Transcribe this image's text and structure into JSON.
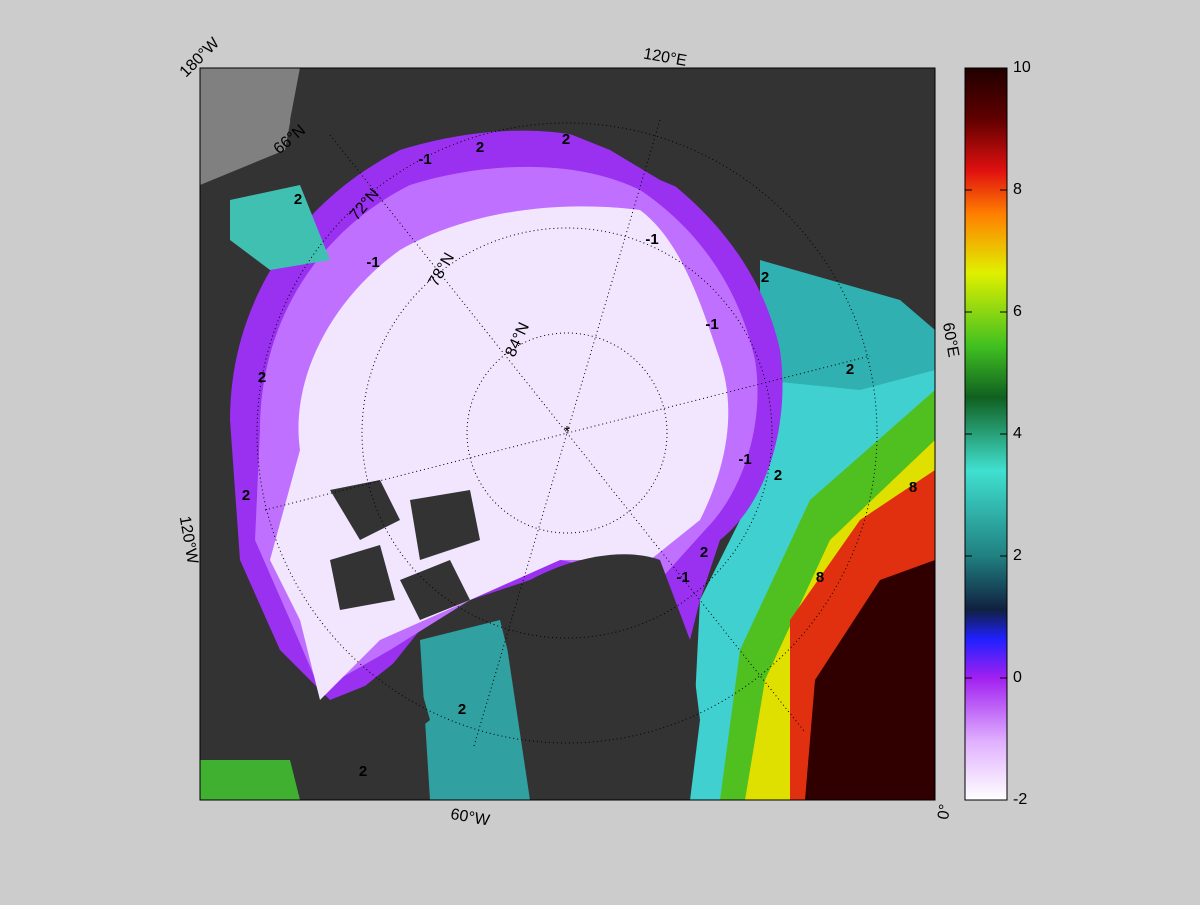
{
  "map": {
    "longitude_labels": [
      "180°W",
      "120°E",
      "60°E",
      "0°",
      "60°W",
      "120°W"
    ],
    "latitude_labels": [
      "66°N",
      "72°N",
      "78°N",
      "84°N"
    ],
    "contour_labels": [
      2,
      -1,
      2,
      2,
      -1,
      -1,
      -1,
      2,
      2,
      2,
      -1,
      2,
      8,
      8,
      2,
      -1,
      2,
      2,
      2
    ]
  },
  "colorbar": {
    "range": [
      -2,
      10
    ],
    "ticks": [
      -2,
      0,
      2,
      4,
      6,
      8,
      10
    ]
  }
}
